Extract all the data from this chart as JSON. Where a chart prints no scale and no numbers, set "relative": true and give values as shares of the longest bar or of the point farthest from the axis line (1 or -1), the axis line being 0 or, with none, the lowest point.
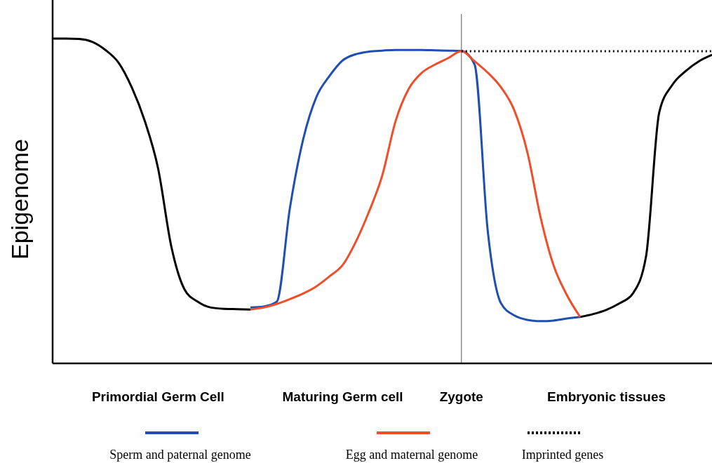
{
  "chart_data": {
    "type": "line",
    "relative": true,
    "ylabel": "Epigenome",
    "legend": "bottom",
    "categories": [
      null,
      null,
      null,
      null,
      null,
      null,
      null,
      null,
      "Primordial Germ Cell",
      null,
      null,
      null,
      null,
      null,
      null,
      null,
      null,
      null,
      null,
      null,
      null,
      null,
      "Maturing Germ cell",
      null,
      null,
      null,
      null,
      null,
      null,
      null,
      null,
      "Zygote",
      null,
      null,
      null,
      null,
      null,
      null,
      null,
      null,
      null,
      null,
      "Embryonic tissues",
      null,
      null,
      null,
      null,
      null,
      null,
      null,
      null
    ],
    "ref_lines": [
      {
        "axis": "x",
        "value": "Zygote",
        "color": "#555555"
      }
    ],
    "series": [
      {
        "color": "#000000",
        "values": [
          1,
          1,
          0.999,
          0.99,
          0.965,
          0.926,
          0.85,
          0.745,
          0.6,
          0.36,
          0.228,
          0.19,
          0.172,
          0.168,
          0.167,
          0.166,
          null,
          null,
          null,
          null,
          null,
          null,
          null,
          null,
          null,
          null,
          null,
          null,
          null,
          null,
          null,
          null,
          null,
          null,
          null,
          null,
          null,
          null,
          null,
          null,
          null,
          null,
          null,
          null,
          null,
          null,
          null,
          null,
          null,
          null,
          null
        ]
      },
      {
        "color": "#000000",
        "values": [
          null,
          null,
          null,
          null,
          null,
          null,
          null,
          null,
          null,
          null,
          null,
          null,
          null,
          null,
          null,
          null,
          null,
          null,
          null,
          null,
          null,
          null,
          null,
          null,
          null,
          null,
          null,
          null,
          null,
          null,
          null,
          null,
          null,
          null,
          null,
          null,
          null,
          null,
          null,
          null,
          0.143,
          0.152,
          0.165,
          0.185,
          0.215,
          0.33,
          0.773,
          0.858,
          0.9,
          0.93,
          0.95
        ]
      },
      {
        "name": "Sperm and paternal genome",
        "color": "#1f4fb0",
        "values": [
          null,
          null,
          null,
          null,
          null,
          null,
          null,
          null,
          null,
          null,
          null,
          null,
          null,
          null,
          null,
          0.172,
          0.175,
          0.19,
          0.48,
          0.69,
          0.82,
          0.885,
          0.933,
          0.952,
          0.96,
          0.963,
          0.965,
          0.965,
          0.965,
          0.964,
          0.963,
          0.962,
          0.92,
          0.406,
          0.185,
          0.148,
          0.134,
          0.13,
          0.132,
          0.138,
          0.143,
          null,
          null,
          null,
          null,
          null,
          null,
          null,
          null,
          null,
          null
        ]
      },
      {
        "name": "Egg and maternal genome",
        "color": "#f04e2b",
        "values": [
          null,
          null,
          null,
          null,
          null,
          null,
          null,
          null,
          null,
          null,
          null,
          null,
          null,
          null,
          null,
          0.166,
          0.172,
          0.183,
          0.198,
          0.215,
          0.237,
          0.268,
          0.303,
          0.375,
          0.468,
          0.579,
          0.745,
          0.845,
          0.895,
          0.92,
          0.94,
          0.961,
          0.93,
          0.895,
          0.85,
          0.78,
          0.65,
          0.45,
          0.3,
          0.21,
          0.143,
          null,
          null,
          null,
          null,
          null,
          null,
          null,
          null,
          null,
          null
        ]
      },
      {
        "name": "Imprinted genes",
        "color": "#000000",
        "line_style": "dotted",
        "values": [
          null,
          null,
          null,
          null,
          null,
          null,
          null,
          null,
          null,
          null,
          null,
          null,
          null,
          null,
          null,
          null,
          null,
          null,
          null,
          null,
          null,
          null,
          null,
          null,
          null,
          null,
          null,
          null,
          null,
          null,
          null,
          0.961,
          0.961,
          0.961,
          0.961,
          0.961,
          0.961,
          0.961,
          0.961,
          0.961,
          0.961,
          0.961,
          0.961,
          0.961,
          0.961,
          0.961,
          0.961,
          0.961,
          0.961,
          0.961,
          0.961
        ]
      }
    ]
  }
}
